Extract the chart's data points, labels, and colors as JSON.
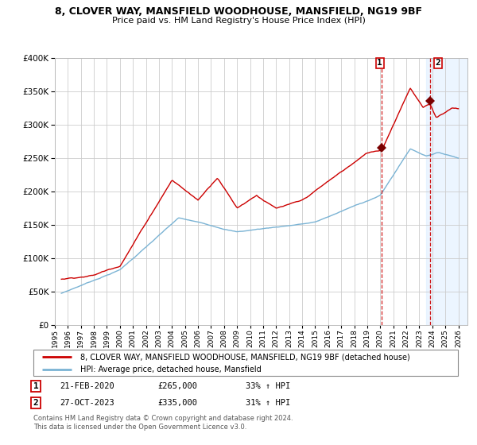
{
  "title": "8, CLOVER WAY, MANSFIELD WOODHOUSE, MANSFIELD, NG19 9BF",
  "subtitle": "Price paid vs. HM Land Registry's House Price Index (HPI)",
  "legend_line1": "8, CLOVER WAY, MANSFIELD WOODHOUSE, MANSFIELD, NG19 9BF (detached house)",
  "legend_line2": "HPI: Average price, detached house, Mansfield",
  "sale1_date": "21-FEB-2020",
  "sale1_price": 265000,
  "sale1_pct": "33%",
  "sale2_date": "27-OCT-2023",
  "sale2_price": 335000,
  "sale2_pct": "31%",
  "footnote1": "Contains HM Land Registry data © Crown copyright and database right 2024.",
  "footnote2": "This data is licensed under the Open Government Licence v3.0.",
  "hpi_color": "#7ab3d4",
  "price_color": "#cc0000",
  "sale_marker_color": "#7a0000",
  "vline_color": "#cc0000",
  "shade_color": "#ddeeff",
  "grid_color": "#cccccc",
  "ylim": [
    0,
    400000
  ],
  "xlim_start": 1995.3,
  "xlim_end": 2026.7,
  "sale1_year": 2020.12,
  "sale2_year": 2023.82,
  "shade_start": 2023.5
}
